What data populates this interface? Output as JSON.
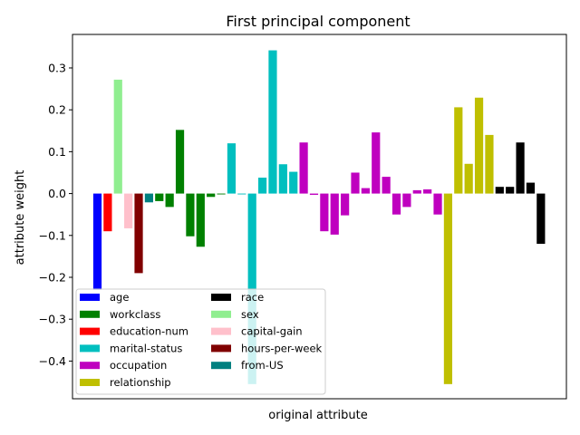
{
  "chart_data": {
    "type": "bar",
    "title": "First principal component",
    "xlabel": "original attribute",
    "ylabel": "attribute weight",
    "ylim": [
      -0.49,
      0.38
    ],
    "yticks": [
      -0.4,
      -0.3,
      -0.2,
      -0.1,
      0.0,
      0.1,
      0.2,
      0.3
    ],
    "ytick_labels": [
      "−0.4",
      "−0.3",
      "−0.2",
      "−0.1",
      "0.0",
      "0.1",
      "0.2",
      "0.3"
    ],
    "grid": false,
    "legend_placement": "lower-left",
    "series": [
      {
        "name": "age",
        "color": "#0000ff"
      },
      {
        "name": "workclass",
        "color": "#008000"
      },
      {
        "name": "education-num",
        "color": "#ff0000"
      },
      {
        "name": "marital-status",
        "color": "#00bfbf"
      },
      {
        "name": "occupation",
        "color": "#bf00bf"
      },
      {
        "name": "relationship",
        "color": "#bfbf00"
      },
      {
        "name": "race",
        "color": "#000000"
      },
      {
        "name": "sex",
        "color": "#90ee90"
      },
      {
        "name": "capital-gain",
        "color": "#ffc0cb"
      },
      {
        "name": "hours-per-week",
        "color": "#800000"
      },
      {
        "name": "from-US",
        "color": "#008080"
      }
    ],
    "bars": [
      {
        "series": "age",
        "value": -0.23
      },
      {
        "series": "education-num",
        "value": -0.09
      },
      {
        "series": "sex",
        "value": 0.272
      },
      {
        "series": "capital-gain",
        "value": -0.083
      },
      {
        "series": "hours-per-week",
        "value": -0.19
      },
      {
        "series": "from-US",
        "value": -0.021
      },
      {
        "series": "workclass",
        "value": -0.018
      },
      {
        "series": "workclass",
        "value": -0.032
      },
      {
        "series": "workclass",
        "value": 0.152
      },
      {
        "series": "workclass",
        "value": -0.102
      },
      {
        "series": "workclass",
        "value": -0.127
      },
      {
        "series": "workclass",
        "value": -0.008
      },
      {
        "series": "workclass",
        "value": -0.002
      },
      {
        "series": "marital-status",
        "value": 0.12
      },
      {
        "series": "marital-status",
        "value": -0.002
      },
      {
        "series": "marital-status",
        "value": -0.455
      },
      {
        "series": "marital-status",
        "value": 0.038
      },
      {
        "series": "marital-status",
        "value": 0.342
      },
      {
        "series": "marital-status",
        "value": 0.07
      },
      {
        "series": "marital-status",
        "value": 0.052
      },
      {
        "series": "occupation",
        "value": 0.122
      },
      {
        "series": "occupation",
        "value": -0.003
      },
      {
        "series": "occupation",
        "value": -0.09
      },
      {
        "series": "occupation",
        "value": -0.098
      },
      {
        "series": "occupation",
        "value": -0.052
      },
      {
        "series": "occupation",
        "value": 0.05
      },
      {
        "series": "occupation",
        "value": 0.013
      },
      {
        "series": "occupation",
        "value": 0.146
      },
      {
        "series": "occupation",
        "value": 0.04
      },
      {
        "series": "occupation",
        "value": -0.05
      },
      {
        "series": "occupation",
        "value": -0.032
      },
      {
        "series": "occupation",
        "value": 0.008
      },
      {
        "series": "occupation",
        "value": 0.01
      },
      {
        "series": "occupation",
        "value": -0.05
      },
      {
        "series": "relationship",
        "value": -0.455
      },
      {
        "series": "relationship",
        "value": 0.206
      },
      {
        "series": "relationship",
        "value": 0.071
      },
      {
        "series": "relationship",
        "value": 0.229
      },
      {
        "series": "relationship",
        "value": 0.14
      },
      {
        "series": "race",
        "value": 0.016
      },
      {
        "series": "race",
        "value": 0.016
      },
      {
        "series": "race",
        "value": 0.122
      },
      {
        "series": "race",
        "value": 0.026
      },
      {
        "series": "race",
        "value": -0.12
      }
    ]
  }
}
